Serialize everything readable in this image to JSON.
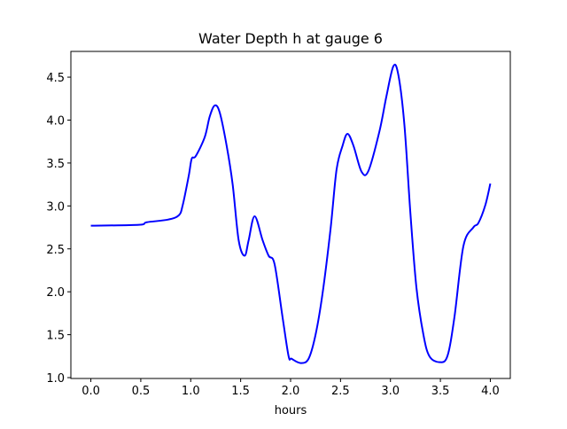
{
  "chart_data": {
    "type": "line",
    "title": "Water Depth h at gauge 6",
    "xlabel": "hours",
    "ylabel": "",
    "xlim": [
      -0.2,
      4.2
    ],
    "ylim": [
      0.99,
      4.8
    ],
    "xticks": [
      "0.0",
      "0.5",
      "1.0",
      "1.5",
      "2.0",
      "2.5",
      "3.0",
      "3.5",
      "4.0"
    ],
    "yticks": [
      "1.0",
      "1.5",
      "2.0",
      "2.5",
      "3.0",
      "3.5",
      "4.0",
      "4.5"
    ],
    "grid": false,
    "series": [
      {
        "name": "h",
        "color": "#0000ff",
        "x": [
          0,
          0.48,
          0.56,
          0.77,
          0.88,
          0.92,
          0.98,
          1.01,
          1.05,
          1.14,
          1.19,
          1.24,
          1.29,
          1.36,
          1.42,
          1.48,
          1.54,
          1.58,
          1.64,
          1.72,
          1.78,
          1.84,
          1.92,
          1.98,
          2.01,
          2.1,
          2.18,
          2.25,
          2.32,
          2.4,
          2.46,
          2.52,
          2.57,
          2.63,
          2.71,
          2.78,
          2.89,
          2.96,
          3.03,
          3.08,
          3.14,
          3.2,
          3.26,
          3.33,
          3.39,
          3.49,
          3.57,
          3.64,
          3.73,
          3.83,
          3.88,
          3.95,
          4.0
        ],
        "y": [
          2.77,
          2.78,
          2.81,
          2.84,
          2.89,
          3.01,
          3.35,
          3.55,
          3.58,
          3.8,
          4.04,
          4.17,
          4.09,
          3.7,
          3.25,
          2.6,
          2.42,
          2.6,
          2.88,
          2.6,
          2.42,
          2.32,
          1.7,
          1.25,
          1.22,
          1.17,
          1.22,
          1.5,
          1.98,
          2.73,
          3.42,
          3.7,
          3.84,
          3.7,
          3.4,
          3.41,
          3.87,
          4.28,
          4.63,
          4.52,
          3.94,
          2.91,
          2.05,
          1.5,
          1.25,
          1.18,
          1.25,
          1.7,
          2.53,
          2.75,
          2.8,
          3.01,
          3.26
        ]
      }
    ]
  }
}
